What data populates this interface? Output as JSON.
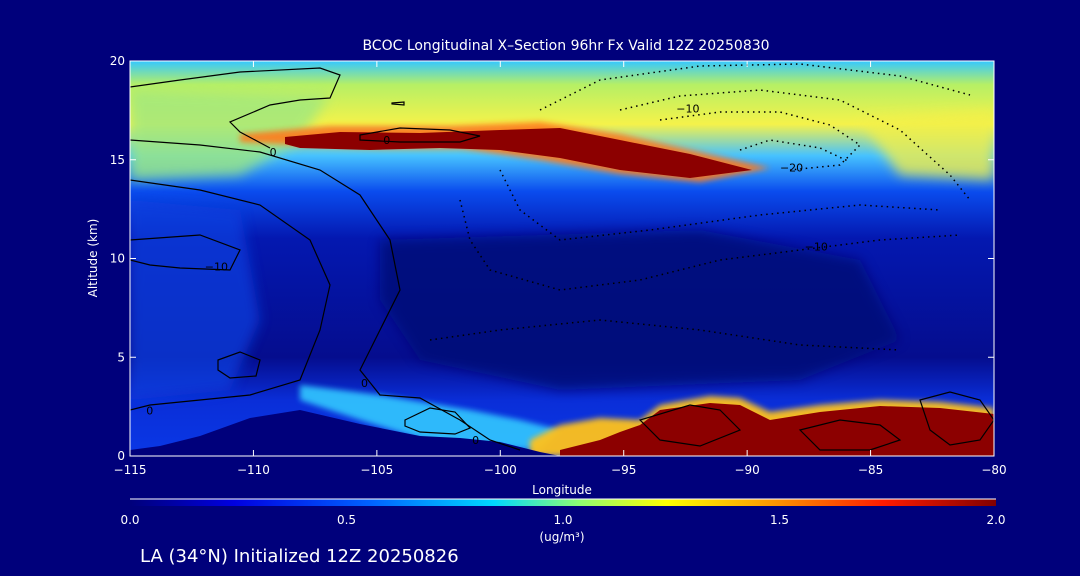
{
  "chart_data": {
    "type": "heatmap",
    "title": "BCOC Longitudinal X–Section 96hr  Fx Valid 12Z 20250830",
    "xlabel": "Longitude",
    "ylabel": "Altitude (km)",
    "xlim": [
      -115,
      -80
    ],
    "ylim": [
      0,
      20
    ],
    "x_ticks": [
      -115,
      -110,
      -105,
      -100,
      -95,
      -90,
      -85,
      -80
    ],
    "y_ticks": [
      0,
      5,
      10,
      15,
      20
    ],
    "colorbar": {
      "min": 0.0,
      "max": 2.0,
      "ticks": [
        0.0,
        0.5,
        1.0,
        1.5,
        2.0
      ],
      "tick_labels": [
        "0.0",
        "0.5",
        "1.0",
        "1.5",
        "2.0"
      ],
      "units": "(ug/m³)"
    },
    "contour_labels": [
      {
        "text": "0",
        "lon": -109.2,
        "alt": 15.4
      },
      {
        "text": "0",
        "lon": -104.6,
        "alt": 16.0
      },
      {
        "text": "−10",
        "lon": -111.5,
        "alt": 9.6
      },
      {
        "text": "0",
        "lon": -114.2,
        "alt": 2.3
      },
      {
        "text": "0",
        "lon": -105.5,
        "alt": 3.7
      },
      {
        "text": "0",
        "lon": -101.0,
        "alt": 0.8
      },
      {
        "text": "−10",
        "lon": -92.4,
        "alt": 17.6
      },
      {
        "text": "−20",
        "lon": -88.2,
        "alt": 14.6
      },
      {
        "text": "−10",
        "lon": -87.2,
        "alt": 10.6
      }
    ],
    "features": [
      {
        "name": "upper plume",
        "lon_range": [
          -108,
          -90.5
        ],
        "alt_range": [
          14.2,
          16.7
        ],
        "value": 2.0
      },
      {
        "name": "surface plume",
        "lon_range": [
          -98,
          -80.5
        ],
        "alt_range": [
          0,
          2.6
        ],
        "value": 2.0
      },
      {
        "name": "upper background",
        "alt_range": [
          15,
          20
        ],
        "value": 1.2
      },
      {
        "name": "mid troposphere",
        "alt_range": [
          3,
          13
        ],
        "value": 0.2
      }
    ]
  },
  "footer": {
    "text": "LA (34°N) Initialized 12Z 20250826"
  }
}
